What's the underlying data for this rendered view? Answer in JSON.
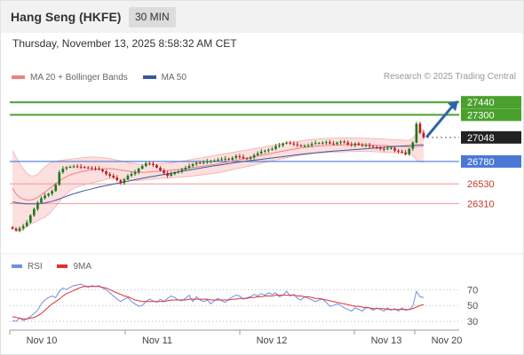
{
  "header": {
    "title": "Hang Seng (HKFE)",
    "interval": "30 MIN"
  },
  "datetime": "Thursday, November 13, 2025 8:58:32 AM CET",
  "legend": {
    "bollinger": "MA 20 + Bollinger Bands",
    "ma50": "MA 50",
    "rsi": "RSI",
    "rsi_ma": "9MA"
  },
  "credit": "Research © 2025 Trading Central",
  "colors": {
    "bollinger": "#f08080",
    "band_fill": "#fbd9d9",
    "ma50": "#3a5a9a",
    "resistance": "#4aa02c",
    "support_major": "#4a78d4",
    "support_minor": "#f2a0a0",
    "current": "#222222",
    "arrow": "#2f64a8",
    "rsi": "#6f8fe0",
    "rsi_ma": "#e03030"
  },
  "chart_data": [
    {
      "type": "candlestick",
      "title": "Hang Seng (HKFE)",
      "ylim": [
        25800,
        27620
      ],
      "x_labels": [
        "Nov 10",
        "Nov 11",
        "Nov 12",
        "Nov 13",
        "Nov 20"
      ],
      "levels": [
        {
          "value": 27440,
          "label": "27440",
          "kind": "resistance"
        },
        {
          "value": 27300,
          "label": "27300",
          "kind": "resistance"
        },
        {
          "value": 27048,
          "label": "27048",
          "kind": "current"
        },
        {
          "value": 26780,
          "label": "26780",
          "kind": "support_major"
        },
        {
          "value": 26530,
          "label": "26530",
          "kind": "support_minor"
        },
        {
          "value": 26310,
          "label": "26310",
          "kind": "support_minor"
        }
      ],
      "arrow": {
        "from_value": 27060,
        "to_value": 27430
      },
      "close": [
        26030,
        26010,
        26035,
        26060,
        26100,
        26180,
        26250,
        26320,
        26370,
        26400,
        26420,
        26450,
        26520,
        26660,
        26700,
        26715,
        26720,
        26725,
        26722,
        26718,
        26712,
        26708,
        26702,
        26700,
        26690,
        26670,
        26640,
        26620,
        26600,
        26570,
        26540,
        26580,
        26620,
        26640,
        26660,
        26700,
        26730,
        26760,
        26755,
        26740,
        26710,
        26680,
        26650,
        26620,
        26640,
        26660,
        26670,
        26690,
        26710,
        26730,
        26750,
        26765,
        26760,
        26770,
        26780,
        26785,
        26790,
        26800,
        26805,
        26810,
        26800,
        26820,
        26840,
        26830,
        26815,
        26810,
        26825,
        26850,
        26870,
        26890,
        26900,
        26910,
        26920,
        26950,
        26960,
        26980,
        26990,
        26980,
        26970,
        26960,
        26950,
        26955,
        26960,
        26975,
        26985,
        26985,
        26990,
        26995,
        26980,
        26975,
        26990,
        27000,
        26990,
        26970,
        26960,
        26980,
        26965,
        26955,
        26960,
        26950,
        26940,
        26930,
        26920,
        26915,
        26925,
        26930,
        26900,
        26890,
        26880,
        26860,
        26920,
        26990,
        27200,
        27100,
        27048
      ],
      "ma20": [
        26480,
        26420,
        26380,
        26360,
        26350,
        26350,
        26360,
        26380,
        26410,
        26440,
        26470,
        26500,
        26530,
        26560,
        26590,
        26610,
        26630,
        26645,
        26655,
        26665,
        26672,
        26680,
        26686,
        26690,
        26694,
        26697,
        26700,
        26700,
        26696,
        26690,
        26684,
        26678,
        26672,
        26666,
        26662,
        26660,
        26660,
        26661,
        26663,
        26666,
        26669,
        26672,
        26675,
        26678,
        26682,
        26686,
        26690,
        26695,
        26700,
        26705,
        26711,
        26717,
        26723,
        26729,
        26735,
        26741,
        26747,
        26753,
        26760,
        26768,
        26776,
        26784,
        26792,
        26800,
        26808,
        26816,
        26824,
        26832,
        26840,
        26848,
        26856,
        26864,
        26872,
        26880,
        26888,
        26896,
        26904,
        26911,
        26918,
        26924,
        26930,
        26935,
        26940,
        26945,
        26950,
        26953,
        26956,
        26958,
        26960,
        26962,
        26963,
        26964,
        26965,
        26966,
        26967,
        26967,
        26967,
        26966,
        26965,
        26964,
        26962,
        26960,
        26958,
        26956,
        26954,
        26952,
        26950,
        26948,
        26946,
        26944,
        26942,
        26942,
        26944,
        26948,
        26952
      ],
      "band_upper": [
        26900,
        26830,
        26760,
        26700,
        26650,
        26620,
        26620,
        26640,
        26680,
        26720,
        26750,
        26770,
        26780,
        26790,
        26795,
        26800,
        26805,
        26810,
        26815,
        26820,
        26825,
        26828,
        26830,
        26830,
        26828,
        26824,
        26819,
        26812,
        26804,
        26795,
        26786,
        26777,
        26769,
        26762,
        26756,
        26752,
        26750,
        26749,
        26749,
        26750,
        26752,
        26755,
        26758,
        26762,
        26767,
        26772,
        26778,
        26784,
        26790,
        26797,
        26804,
        26811,
        26818,
        26825,
        26832,
        26839,
        26846,
        26853,
        26860,
        26867,
        26874,
        26881,
        26888,
        26895,
        26902,
        26909,
        26916,
        26923,
        26930,
        26937,
        26944,
        26951,
        26958,
        26965,
        26972,
        26979,
        26986,
        26992,
        26998,
        27004,
        27010,
        27016,
        27020,
        27024,
        27028,
        27031,
        27034,
        27036,
        27038,
        27040,
        27041,
        27042,
        27043,
        27043,
        27043,
        27042,
        27041,
        27040,
        27039,
        27037,
        27035,
        27033,
        27031,
        27029,
        27027,
        27025,
        27023,
        27021,
        27019,
        27017,
        27015,
        27040,
        27090,
        27120,
        27130
      ],
      "band_lower": [
        26060,
        26010,
        26000,
        26020,
        26050,
        26080,
        26100,
        26120,
        26140,
        26160,
        26190,
        26230,
        26280,
        26330,
        26385,
        26420,
        26455,
        26480,
        26495,
        26510,
        26519,
        26532,
        26542,
        26550,
        26560,
        26570,
        26581,
        26588,
        26588,
        26585,
        26582,
        26579,
        26575,
        26570,
        26568,
        26568,
        26570,
        26573,
        26577,
        26582,
        26586,
        26589,
        26592,
        26594,
        26597,
        26600,
        26602,
        26606,
        26610,
        26613,
        26618,
        26623,
        26628,
        26633,
        26638,
        26643,
        26648,
        26653,
        26660,
        26669,
        26678,
        26687,
        26696,
        26705,
        26714,
        26723,
        26732,
        26741,
        26750,
        26759,
        26768,
        26777,
        26786,
        26795,
        26804,
        26813,
        26822,
        26830,
        26838,
        26844,
        26850,
        26854,
        26860,
        26866,
        26872,
        26875,
        26878,
        26880,
        26882,
        26884,
        26885,
        26886,
        26887,
        26889,
        26891,
        26892,
        26893,
        26892,
        26891,
        26891,
        26889,
        26887,
        26885,
        26883,
        26881,
        26879,
        26877,
        26875,
        26873,
        26871,
        26869,
        26844,
        26798,
        26776,
        26774
      ],
      "ma50": [
        26330,
        26322,
        26315,
        26310,
        26307,
        26306,
        26306,
        26308,
        26312,
        26318,
        26326,
        26336,
        26348,
        26362,
        26377,
        26392,
        26407,
        26420,
        26432,
        26444,
        26455,
        26465,
        26475,
        26485,
        26494,
        26503,
        26512,
        26520,
        26528,
        26536,
        26544,
        26552,
        26560,
        26568,
        26576,
        26584,
        26592,
        26600,
        26607,
        26614,
        26621,
        26628,
        26635,
        26642,
        26649,
        26656,
        26663,
        26670,
        26677,
        26684,
        26691,
        26698,
        26705,
        26712,
        26719,
        26726,
        26732,
        26738,
        26744,
        26750,
        26756,
        26762,
        26768,
        26774,
        26779,
        26784,
        26789,
        26794,
        26799,
        26804,
        26809,
        26814,
        26819,
        26824,
        26829,
        26834,
        26839,
        26844,
        26849,
        26854,
        26859,
        26864,
        26868,
        26872,
        26876,
        26880,
        26884,
        26888,
        26892,
        26895,
        26898,
        26901,
        26904,
        26907,
        26910,
        26913,
        26916,
        26919,
        26922,
        26925,
        26928,
        26931,
        26934,
        26937,
        26940,
        26943,
        26946,
        26949,
        26952,
        26955,
        26957,
        26960,
        26962,
        26964,
        26966
      ]
    },
    {
      "type": "line",
      "title": "RSI",
      "ylim": [
        20,
        85
      ],
      "yticks": [
        70,
        50,
        30
      ],
      "series": [
        {
          "name": "RSI",
          "values": [
            31,
            30,
            34,
            31,
            33,
            36,
            40,
            44,
            52,
            57,
            60,
            62,
            60,
            68,
            72,
            70,
            73,
            75,
            76,
            77,
            75,
            73,
            75,
            74,
            75,
            72,
            70,
            66,
            62,
            58,
            55,
            58,
            60,
            55,
            52,
            49,
            50,
            55,
            58,
            56,
            54,
            58,
            55,
            59,
            62,
            60,
            57,
            56,
            59,
            63,
            55,
            61,
            57,
            55,
            57,
            52,
            56,
            59,
            56,
            54,
            58,
            61,
            63,
            62,
            58,
            60,
            61,
            64,
            62,
            65,
            63,
            66,
            64,
            66,
            61,
            63,
            68,
            62,
            64,
            59,
            57,
            61,
            59,
            57,
            55,
            57,
            58,
            54,
            49,
            50,
            52,
            50,
            47,
            45,
            43,
            47,
            45,
            43,
            48,
            47,
            44,
            47,
            45,
            43,
            47,
            44,
            46,
            43,
            47,
            44,
            45,
            49,
            68,
            61,
            60
          ]
        },
        {
          "name": "9MA",
          "values": [
            36,
            35,
            34,
            33,
            33,
            34,
            35,
            37,
            40,
            44,
            48,
            52,
            55,
            58,
            62,
            65,
            67,
            69,
            71,
            73,
            74,
            74,
            74,
            74,
            74,
            73,
            72,
            70,
            68,
            66,
            64,
            62,
            61,
            59,
            57,
            56,
            55,
            55,
            55,
            55,
            55,
            55,
            55,
            56,
            57,
            57,
            57,
            57,
            57,
            58,
            58,
            58,
            58,
            58,
            58,
            57,
            57,
            57,
            57,
            57,
            57,
            58,
            58,
            59,
            59,
            59,
            60,
            60,
            61,
            61,
            62,
            62,
            62,
            63,
            63,
            63,
            63,
            63,
            63,
            62,
            62,
            61,
            61,
            60,
            59,
            59,
            58,
            57,
            56,
            55,
            54,
            53,
            52,
            51,
            50,
            49,
            49,
            48,
            47,
            47,
            46,
            46,
            46,
            46,
            45,
            45,
            45,
            45,
            45,
            45,
            45,
            46,
            48,
            50,
            51
          ]
        }
      ]
    }
  ]
}
